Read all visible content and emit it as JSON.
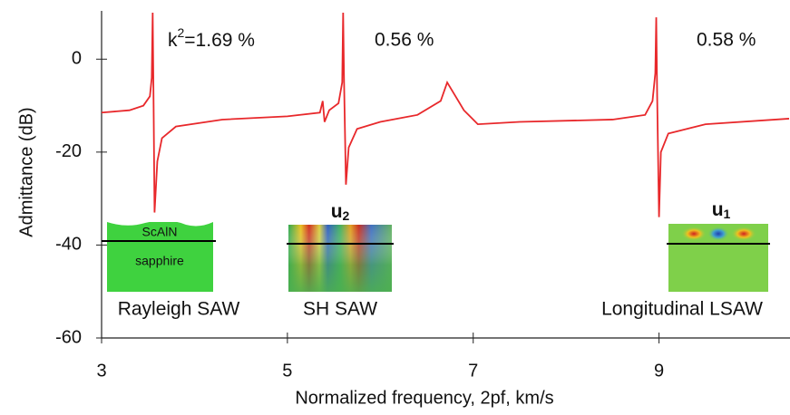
{
  "chart_data": {
    "type": "line",
    "xlabel": "Normalized frequency, 2pf, km/s",
    "ylabel": "Admittance (dB)",
    "x": [
      3.0,
      3.3,
      3.45,
      3.52,
      3.54,
      3.55,
      3.56,
      3.57,
      3.6,
      3.65,
      3.8,
      4.3,
      5.0,
      5.35,
      5.38,
      5.4,
      5.45,
      5.55,
      5.59,
      5.6,
      5.61,
      5.63,
      5.66,
      5.75,
      6.0,
      6.4,
      6.65,
      6.72,
      6.78,
      6.9,
      7.05,
      7.5,
      8.5,
      8.85,
      8.93,
      8.96,
      8.97,
      8.98,
      9.0,
      9.02,
      9.1,
      9.5,
      10.4
    ],
    "values": [
      -11.5,
      -11,
      -10,
      -8,
      -4,
      10,
      -10,
      -33,
      -22,
      -17,
      -14.5,
      -13,
      -12.3,
      -11.5,
      -9,
      -13.5,
      -11,
      -9.5,
      -5,
      10,
      -5,
      -27,
      -19,
      -15,
      -13.5,
      -12,
      -9,
      -5,
      -7,
      -11,
      -14,
      -13.5,
      -13,
      -12,
      -9,
      -3,
      9,
      -8,
      -34,
      -20,
      -16,
      -14,
      -12.8
    ],
    "color": "#e8282b",
    "xlim": [
      3,
      10.4
    ],
    "ylim": [
      -60,
      10
    ],
    "xticks": [
      3,
      5,
      7,
      9
    ],
    "yticks": [
      -60,
      -40,
      -20,
      0
    ],
    "annotations": [
      {
        "text": "k",
        "sup": "2",
        "rest": "=1.69 %"
      },
      {
        "text": "0.56 %"
      },
      {
        "text": "0.58 %"
      }
    ],
    "insets": [
      {
        "label": "Rayleigh SAW",
        "layer_top": "ScAlN",
        "layer_bottom": "sapphire"
      },
      {
        "label": "SH SAW",
        "component": "u",
        "sub": "2"
      },
      {
        "label": "Longitudinal LSAW",
        "component": "u",
        "sub": "1"
      }
    ]
  }
}
